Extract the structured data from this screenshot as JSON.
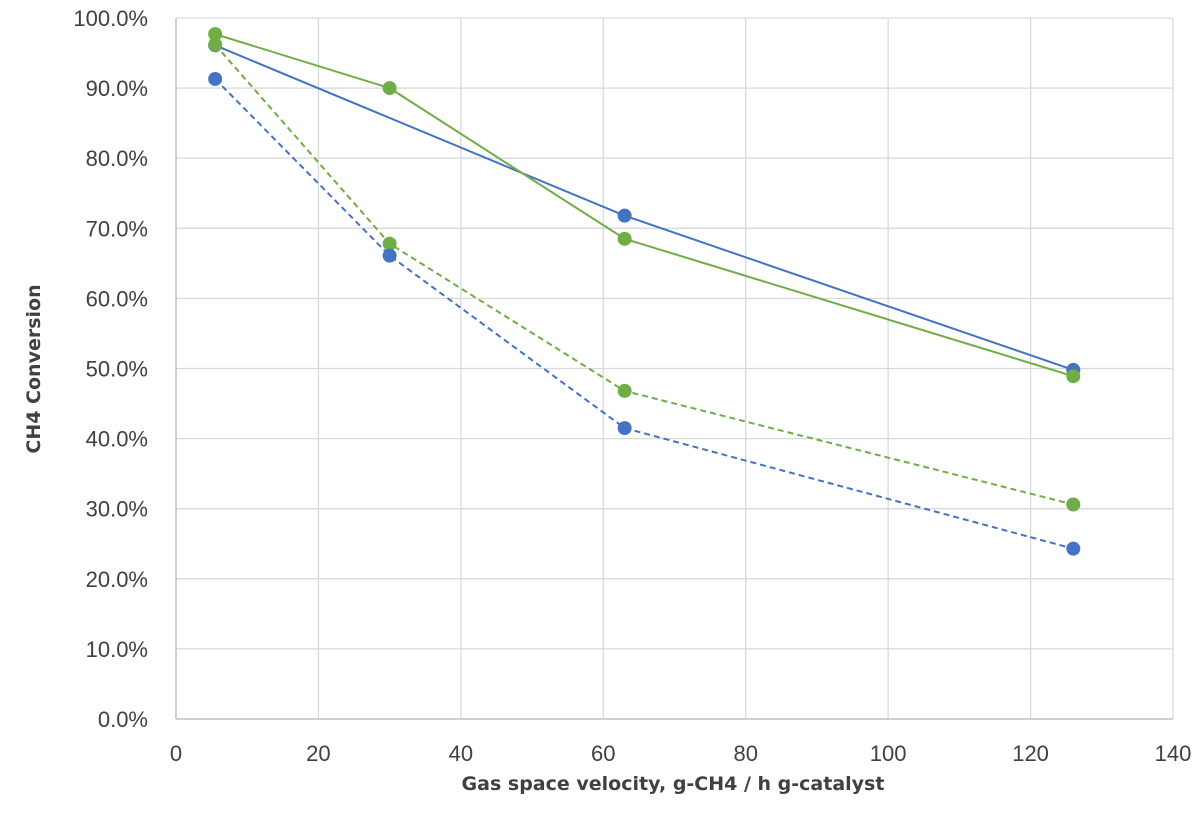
{
  "chart_data": {
    "type": "scatter",
    "title": "",
    "xlabel": "Gas space velocity, g-CH4 / h g-catalyst",
    "ylabel": "CH4 Conversion",
    "xlim": [
      0,
      140
    ],
    "ylim": [
      0,
      1
    ],
    "x_ticks": [
      0,
      20,
      40,
      60,
      80,
      100,
      120,
      140
    ],
    "y_ticks": [
      0,
      0.1,
      0.2,
      0.3,
      0.4,
      0.5,
      0.6,
      0.7,
      0.8,
      0.9,
      1.0
    ],
    "y_tick_labels": [
      "0.0%",
      "10.0%",
      "20.0%",
      "30.0%",
      "40.0%",
      "50.0%",
      "60.0%",
      "70.0%",
      "80.0%",
      "90.0%",
      "100.0%"
    ],
    "grid": true,
    "legend": false,
    "series": [
      {
        "color": "#4472C4",
        "line": "solid",
        "x": [
          5.5,
          63,
          126
        ],
        "y": [
          0.961,
          0.718,
          0.498
        ]
      },
      {
        "color": "#70AD47",
        "line": "solid",
        "x": [
          5.5,
          30,
          63,
          126
        ],
        "y": [
          0.977,
          0.9,
          0.685,
          0.489
        ]
      },
      {
        "color": "#70AD47",
        "line": "dashed",
        "x": [
          5.5,
          30,
          63,
          126
        ],
        "y": [
          0.962,
          0.678,
          0.468,
          0.306
        ]
      },
      {
        "color": "#4472C4",
        "line": "dashed",
        "x": [
          5.5,
          30,
          63,
          126
        ],
        "y": [
          0.913,
          0.661,
          0.415,
          0.243
        ]
      }
    ]
  }
}
